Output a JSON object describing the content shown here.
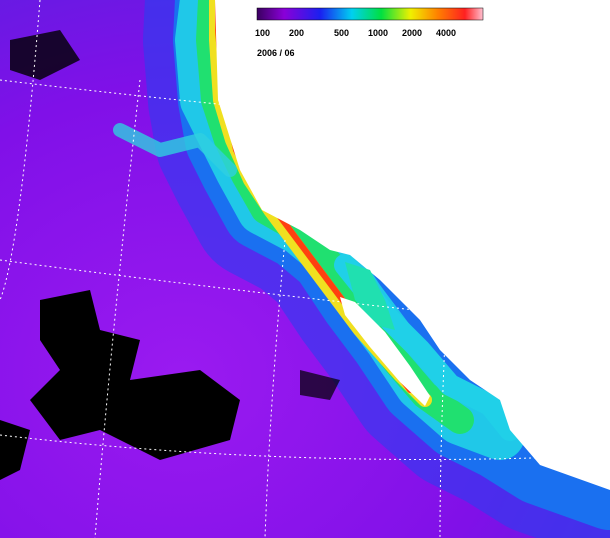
{
  "legend": {
    "ticks": [
      100,
      200,
      500,
      1000,
      2000,
      4000
    ]
  },
  "date": "2006 / 06"
}
